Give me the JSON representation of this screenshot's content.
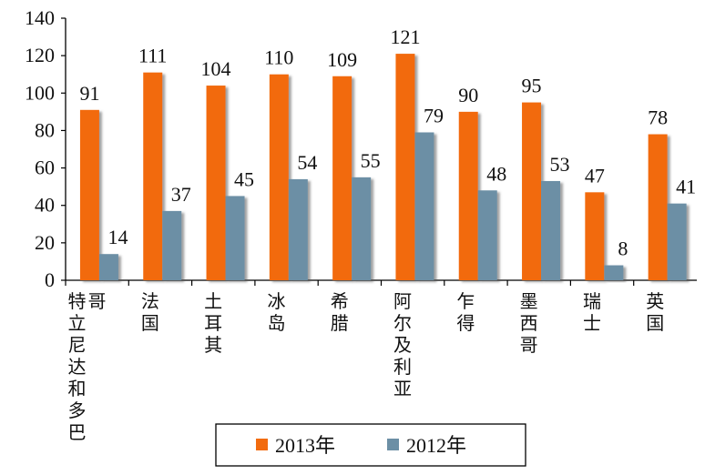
{
  "chart_data": {
    "type": "bar",
    "title": "",
    "xlabel": "",
    "ylabel": "",
    "ylim": [
      0,
      140
    ],
    "yticks": [
      0,
      20,
      40,
      60,
      80,
      100,
      120,
      140
    ],
    "grid": false,
    "legend_position": "bottom-center",
    "categories": [
      "特立尼达和多巴哥",
      "法国",
      "土耳其",
      "冰岛",
      "希腊",
      "阿尔及利亚",
      "乍得",
      "墨西哥",
      "瑞士",
      "英国"
    ],
    "series": [
      {
        "name": "2013年",
        "color": "#f26b0f",
        "values": [
          91,
          111,
          104,
          110,
          109,
          121,
          90,
          95,
          47,
          78
        ]
      },
      {
        "name": "2012年",
        "color": "#6c8fa5",
        "values": [
          14,
          37,
          45,
          54,
          55,
          79,
          48,
          53,
          8,
          41
        ]
      }
    ]
  }
}
